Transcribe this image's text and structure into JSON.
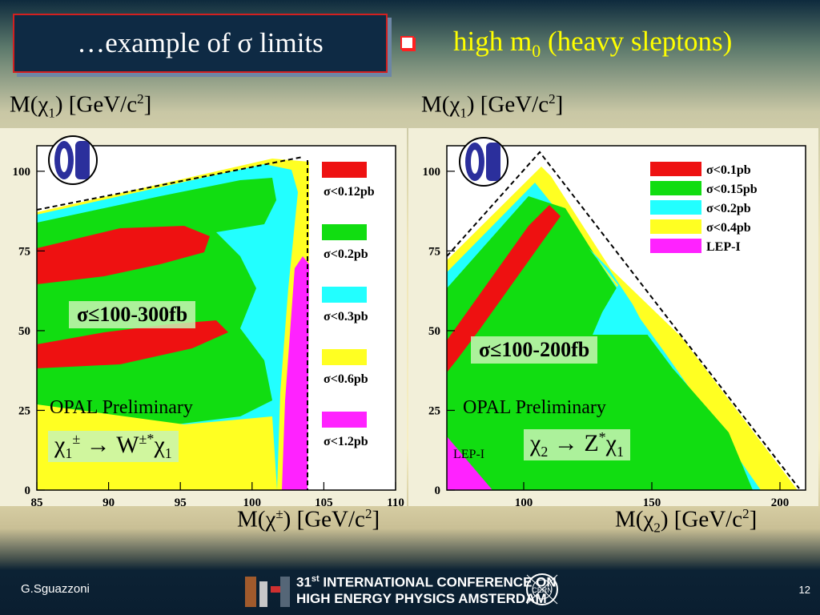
{
  "slide": {
    "title": "…example of σ limits",
    "headline_prefix": "high m",
    "headline_sub": "0",
    "headline_suffix": " (heavy sleptons)",
    "author": "G.Sguazzoni",
    "page_number": "12",
    "conference_line1_num": "31",
    "conference_line1_sup": "st",
    "conference_line1_rest": " INTERNATIONAL CONFERENCE ON",
    "conference_line2": "HIGH ENERGY PHYSICS AMSTERDAM",
    "cern_logo_text": "CERN"
  },
  "chart_data": [
    {
      "type": "heatmap",
      "experiment_logo": "OPAL",
      "ylabel_parts": {
        "pre": "M(χ",
        "sub": "1",
        "post": ") [GeV/c",
        "sup": "2",
        "end": "]"
      },
      "xlabel_parts": {
        "pre": "M(χ",
        "sup": "±",
        "post": ") [GeV/c",
        "sup2": "2",
        "end": "]"
      },
      "x_ticks": [
        "85",
        "90",
        "95",
        "100",
        "105",
        "110"
      ],
      "y_ticks": [
        "0",
        "25",
        "50",
        "75",
        "100"
      ],
      "xlim": [
        85,
        110
      ],
      "ylim": [
        0,
        108
      ],
      "legend": [
        "σ<0.12pb",
        "σ<0.2pb",
        "σ<0.3pb",
        "σ<0.6pb",
        "σ<1.2pb"
      ],
      "legend_colors": [
        "#ee1111",
        "#11dd11",
        "#22ffff",
        "#ffff22",
        "#ff22ff"
      ],
      "annotation": "σ≤100-300fb",
      "preliminary": "OPAL Preliminary",
      "decay": {
        "a": "χ",
        "a_sub": "1",
        "a_sup": "±",
        "arrow": " → ",
        "b": "W",
        "b_sup": "±*",
        "c": "χ",
        "c_sub": "1"
      }
    },
    {
      "type": "heatmap",
      "experiment_logo": "OPAL",
      "ylabel_parts": {
        "pre": "M(χ",
        "sub": "1",
        "post": ") [GeV/c",
        "sup": "2",
        "end": "]"
      },
      "xlabel_parts": {
        "pre": "M(χ",
        "sub": "2",
        "post": ") [GeV/c",
        "sup": "2",
        "end": "]"
      },
      "x_ticks": [
        "100",
        "150",
        "200"
      ],
      "y_ticks": [
        "0",
        "25",
        "50",
        "75",
        "100"
      ],
      "xlim": [
        70,
        210
      ],
      "ylim": [
        0,
        108
      ],
      "legend": [
        "σ<0.1pb",
        "σ<0.15pb",
        "σ<0.2pb",
        "σ<0.4pb",
        "LEP-I"
      ],
      "legend_colors": [
        "#ee1111",
        "#11dd11",
        "#22ffff",
        "#ffff22",
        "#ff22ff"
      ],
      "annotation": "σ≤100-200fb",
      "preliminary": "OPAL Preliminary",
      "lep_label": "LEP-I",
      "decay": {
        "a": "χ",
        "a_sub": "2",
        "arrow": " → ",
        "b": "Z",
        "b_sup": "*",
        "c": "χ",
        "c_sub": "1"
      }
    }
  ]
}
